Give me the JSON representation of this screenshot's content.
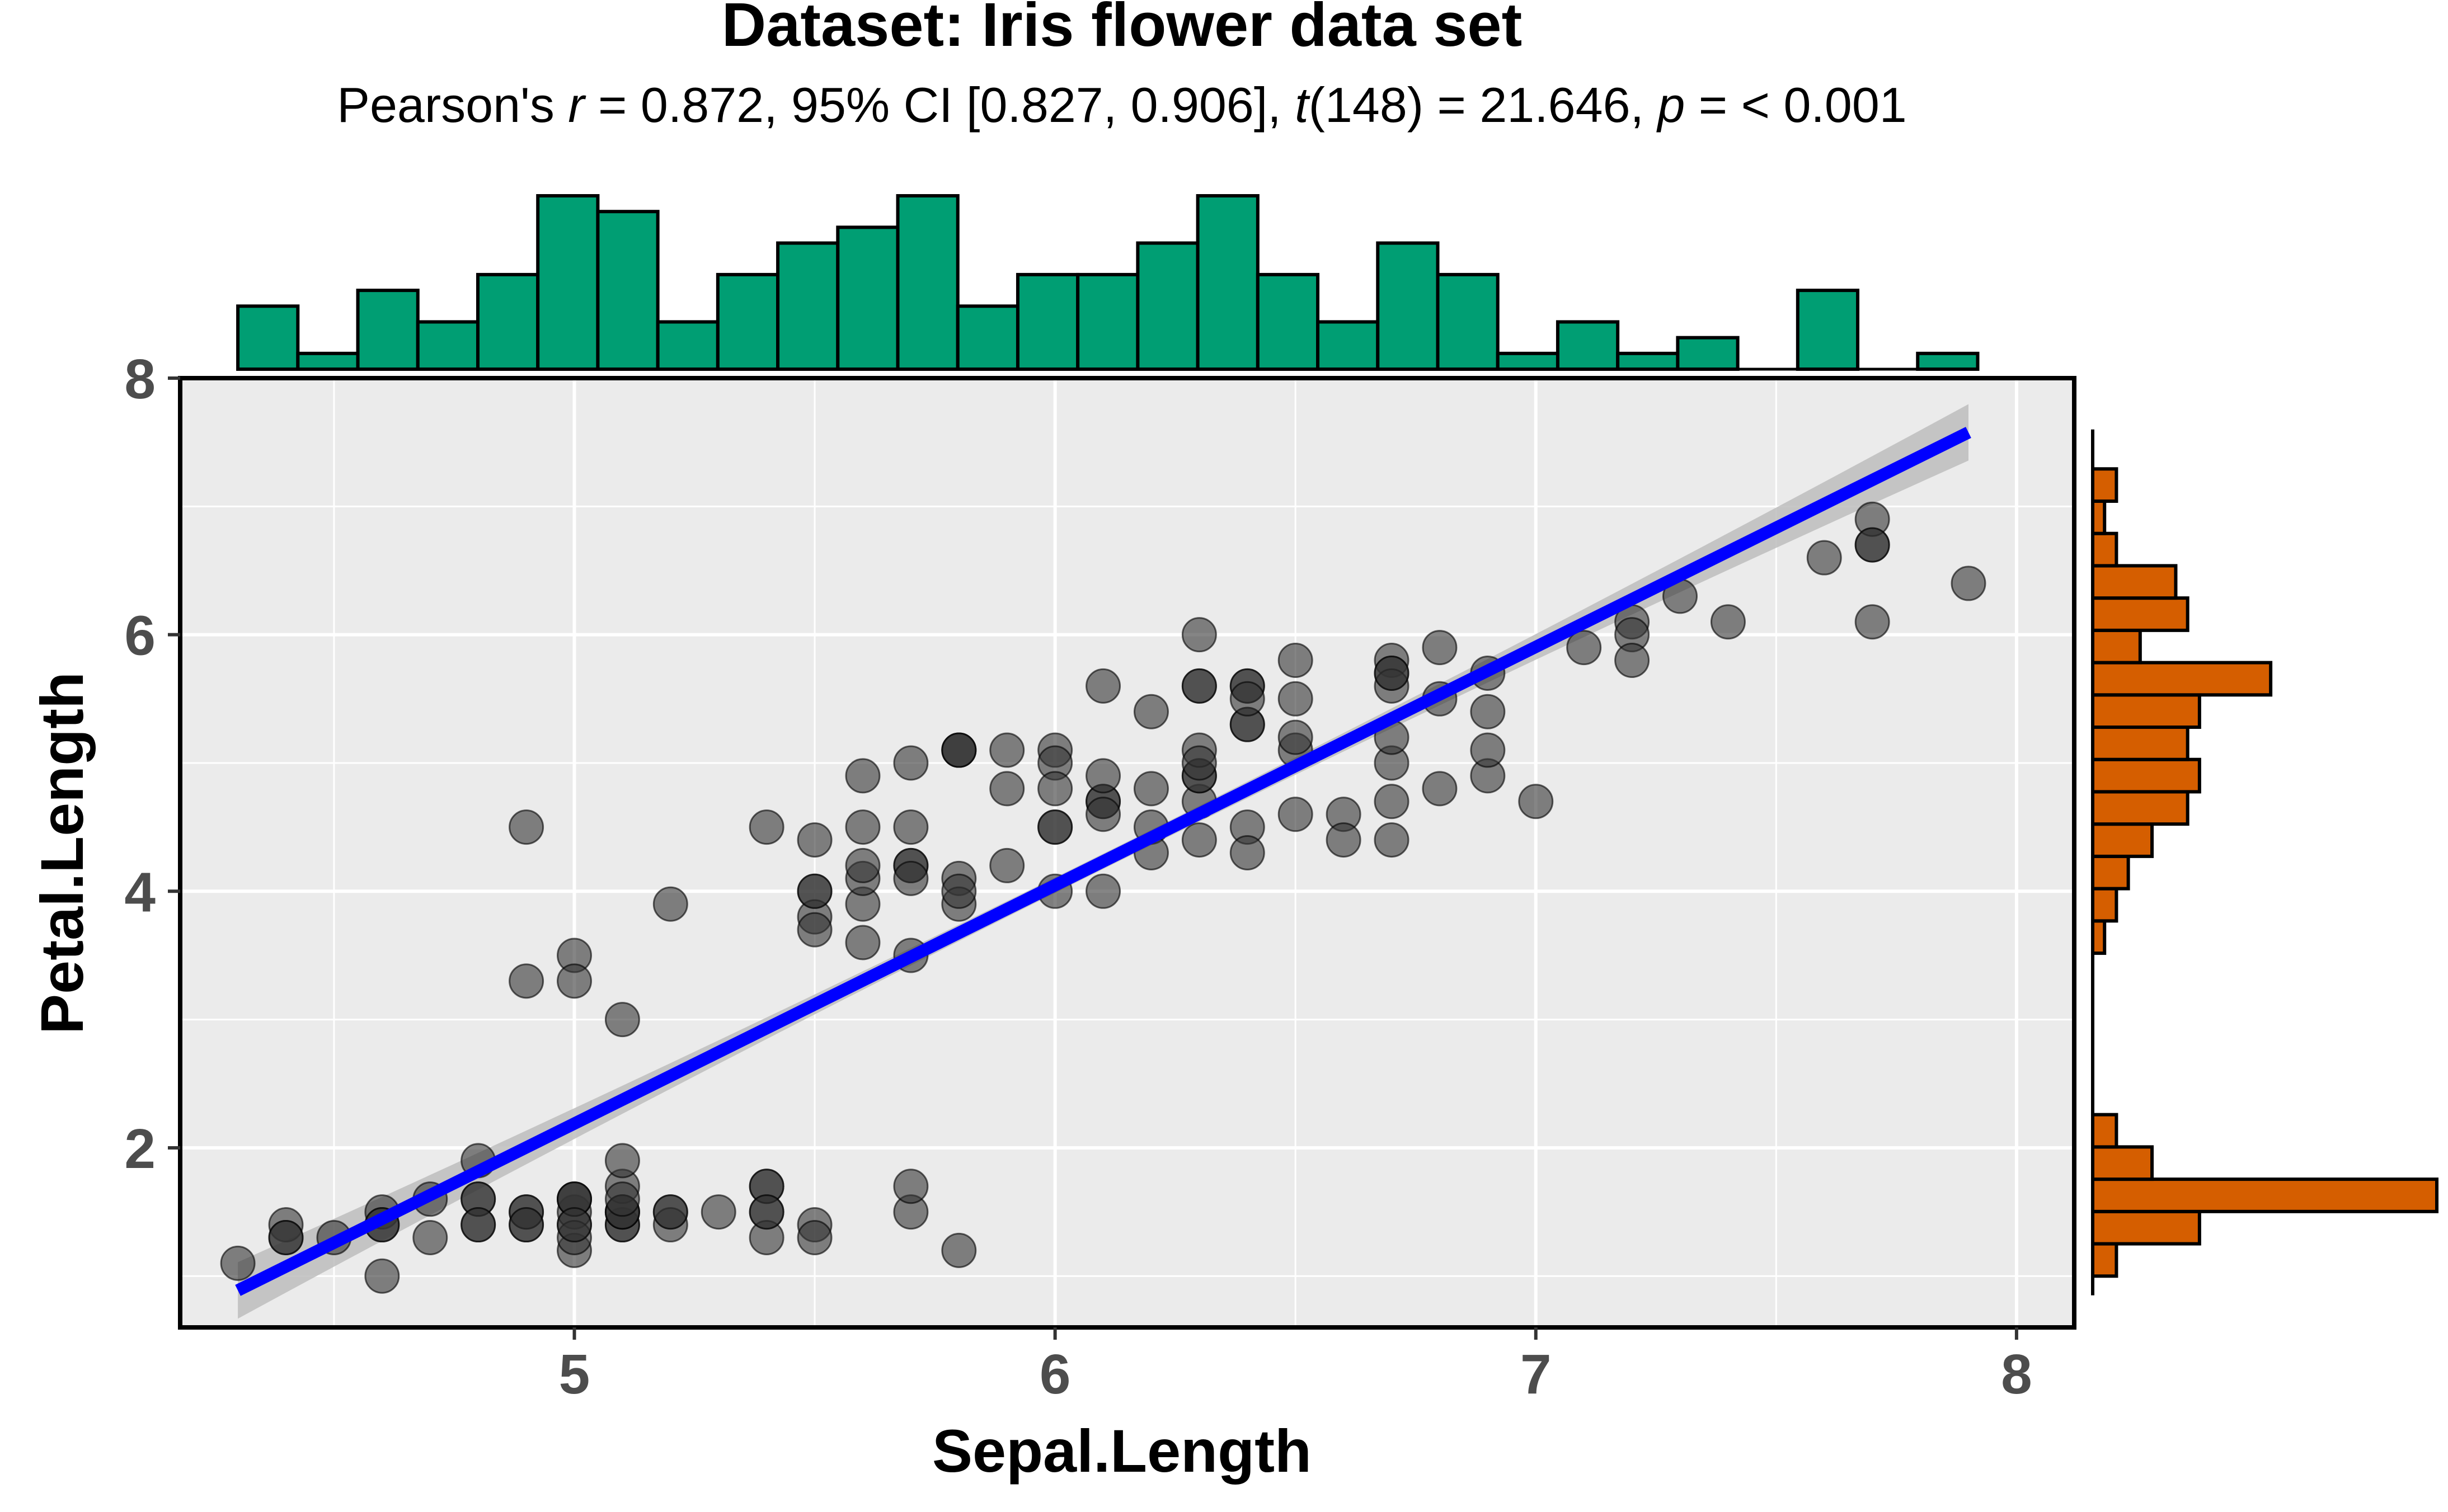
{
  "title": "Dataset: Iris flower data set",
  "subtitle": {
    "prefix": "Pearson's ",
    "r_symbol": "r",
    "r_text": " = 0.872, 95% CI [0.827, 0.906], ",
    "t_symbol": "t",
    "t_text": "(148) = 21.646, ",
    "p_symbol": "p",
    "p_text": " = < 0.001"
  },
  "colors": {
    "panel_background": "#ebebeb",
    "grid": "#ffffff",
    "points": "#333333",
    "fit_line": "#0000ff",
    "ci_band": "#bdbdbd",
    "top_histogram": "#009e73",
    "right_histogram": "#d55e00",
    "tick_labels": "#4d4d4d"
  },
  "chart_data": {
    "type": "scatter",
    "xlabel": "Sepal.Length",
    "ylabel": "Petal.Length",
    "xlim": [
      4.18,
      8.12
    ],
    "ylim": [
      0.6,
      8.0
    ],
    "x_ticks": [
      5,
      6,
      7,
      8
    ],
    "y_ticks": [
      2,
      4,
      6,
      8
    ],
    "grid": true,
    "fit_line": {
      "x_range": [
        4.3,
        7.9
      ],
      "intercept": -7.101,
      "slope": 1.858,
      "ci_halfwidth_at_ends": 0.22,
      "ci_halfwidth_at_center": 0.06
    },
    "points": [
      [
        5.1,
        1.4
      ],
      [
        4.9,
        1.4
      ],
      [
        4.7,
        1.3
      ],
      [
        4.6,
        1.5
      ],
      [
        5.0,
        1.4
      ],
      [
        5.4,
        1.7
      ],
      [
        4.6,
        1.4
      ],
      [
        5.0,
        1.5
      ],
      [
        4.4,
        1.4
      ],
      [
        4.9,
        1.5
      ],
      [
        5.4,
        1.5
      ],
      [
        4.8,
        1.6
      ],
      [
        4.8,
        1.4
      ],
      [
        4.3,
        1.1
      ],
      [
        5.8,
        1.2
      ],
      [
        5.7,
        1.5
      ],
      [
        5.4,
        1.3
      ],
      [
        5.1,
        1.4
      ],
      [
        5.7,
        1.7
      ],
      [
        5.1,
        1.5
      ],
      [
        5.4,
        1.7
      ],
      [
        5.1,
        1.5
      ],
      [
        4.6,
        1.0
      ],
      [
        5.1,
        1.7
      ],
      [
        4.8,
        1.9
      ],
      [
        5.0,
        1.6
      ],
      [
        5.0,
        1.6
      ],
      [
        5.2,
        1.5
      ],
      [
        5.2,
        1.4
      ],
      [
        4.7,
        1.6
      ],
      [
        4.8,
        1.6
      ],
      [
        5.4,
        1.5
      ],
      [
        5.2,
        1.5
      ],
      [
        5.5,
        1.4
      ],
      [
        4.9,
        1.5
      ],
      [
        5.0,
        1.2
      ],
      [
        5.5,
        1.3
      ],
      [
        4.9,
        1.4
      ],
      [
        4.4,
        1.3
      ],
      [
        5.1,
        1.5
      ],
      [
        5.0,
        1.3
      ],
      [
        4.5,
        1.3
      ],
      [
        4.4,
        1.3
      ],
      [
        5.0,
        1.6
      ],
      [
        5.1,
        1.9
      ],
      [
        4.8,
        1.4
      ],
      [
        5.1,
        1.6
      ],
      [
        4.6,
        1.4
      ],
      [
        5.3,
        1.5
      ],
      [
        5.0,
        1.4
      ],
      [
        7.0,
        4.7
      ],
      [
        6.4,
        4.5
      ],
      [
        6.9,
        4.9
      ],
      [
        5.5,
        4.0
      ],
      [
        6.5,
        4.6
      ],
      [
        5.7,
        4.5
      ],
      [
        6.3,
        4.7
      ],
      [
        4.9,
        3.3
      ],
      [
        6.6,
        4.6
      ],
      [
        5.2,
        3.9
      ],
      [
        5.0,
        3.5
      ],
      [
        5.9,
        4.2
      ],
      [
        6.0,
        4.0
      ],
      [
        6.1,
        4.7
      ],
      [
        5.6,
        3.6
      ],
      [
        6.7,
        4.4
      ],
      [
        5.6,
        4.5
      ],
      [
        5.8,
        4.1
      ],
      [
        6.2,
        4.5
      ],
      [
        5.6,
        3.9
      ],
      [
        5.9,
        4.8
      ],
      [
        6.1,
        4.0
      ],
      [
        6.3,
        4.9
      ],
      [
        6.1,
        4.7
      ],
      [
        6.4,
        4.3
      ],
      [
        6.6,
        4.4
      ],
      [
        6.8,
        4.8
      ],
      [
        6.7,
        5.0
      ],
      [
        6.0,
        4.5
      ],
      [
        5.7,
        3.5
      ],
      [
        5.5,
        3.8
      ],
      [
        5.5,
        3.7
      ],
      [
        5.8,
        3.9
      ],
      [
        6.0,
        5.1
      ],
      [
        5.4,
        4.5
      ],
      [
        6.0,
        4.5
      ],
      [
        6.7,
        4.7
      ],
      [
        6.3,
        4.4
      ],
      [
        5.6,
        4.1
      ],
      [
        5.5,
        4.0
      ],
      [
        5.5,
        4.4
      ],
      [
        6.1,
        4.6
      ],
      [
        5.8,
        4.0
      ],
      [
        5.0,
        3.3
      ],
      [
        5.6,
        4.2
      ],
      [
        5.7,
        4.2
      ],
      [
        5.7,
        4.2
      ],
      [
        6.2,
        4.3
      ],
      [
        5.1,
        3.0
      ],
      [
        5.7,
        4.1
      ],
      [
        6.3,
        6.0
      ],
      [
        5.8,
        5.1
      ],
      [
        7.1,
        5.9
      ],
      [
        6.3,
        5.6
      ],
      [
        6.5,
        5.8
      ],
      [
        7.6,
        6.6
      ],
      [
        4.9,
        4.5
      ],
      [
        7.3,
        6.3
      ],
      [
        6.7,
        5.8
      ],
      [
        7.2,
        6.1
      ],
      [
        6.5,
        5.1
      ],
      [
        6.4,
        5.3
      ],
      [
        6.8,
        5.5
      ],
      [
        5.7,
        5.0
      ],
      [
        5.8,
        5.1
      ],
      [
        6.4,
        5.3
      ],
      [
        6.5,
        5.5
      ],
      [
        7.7,
        6.7
      ],
      [
        7.7,
        6.9
      ],
      [
        6.0,
        5.0
      ],
      [
        6.9,
        5.7
      ],
      [
        5.6,
        4.9
      ],
      [
        7.7,
        6.7
      ],
      [
        6.3,
        4.9
      ],
      [
        6.7,
        5.7
      ],
      [
        7.2,
        6.0
      ],
      [
        6.2,
        4.8
      ],
      [
        6.1,
        4.9
      ],
      [
        6.4,
        5.6
      ],
      [
        7.2,
        5.8
      ],
      [
        7.4,
        6.1
      ],
      [
        7.9,
        6.4
      ],
      [
        6.4,
        5.6
      ],
      [
        6.3,
        5.1
      ],
      [
        6.1,
        5.6
      ],
      [
        7.7,
        6.1
      ],
      [
        6.3,
        5.6
      ],
      [
        6.4,
        5.5
      ],
      [
        6.0,
        4.8
      ],
      [
        6.9,
        5.4
      ],
      [
        6.7,
        5.6
      ],
      [
        6.9,
        5.1
      ],
      [
        5.8,
        5.1
      ],
      [
        6.8,
        5.9
      ],
      [
        6.7,
        5.7
      ],
      [
        6.7,
        5.2
      ],
      [
        6.3,
        5.0
      ],
      [
        6.5,
        5.2
      ],
      [
        6.2,
        5.4
      ],
      [
        5.9,
        5.1
      ]
    ],
    "top_histogram": {
      "bin_start": 4.3,
      "bin_width": 0.1248,
      "counts": [
        4,
        1,
        5,
        3,
        6,
        11,
        10,
        3,
        6,
        8,
        9,
        11,
        4,
        6,
        6,
        8,
        11,
        6,
        3,
        8,
        6,
        1,
        3,
        1,
        2,
        0,
        5,
        0,
        1
      ]
    },
    "right_histogram": {
      "bin_start": 1.0,
      "bin_width": 0.2517,
      "counts": [
        2,
        9,
        29,
        5,
        2,
        0,
        0,
        0,
        0,
        0,
        1,
        2,
        3,
        5,
        8,
        9,
        8,
        9,
        15,
        4,
        8,
        7,
        2,
        1,
        2
      ]
    }
  }
}
